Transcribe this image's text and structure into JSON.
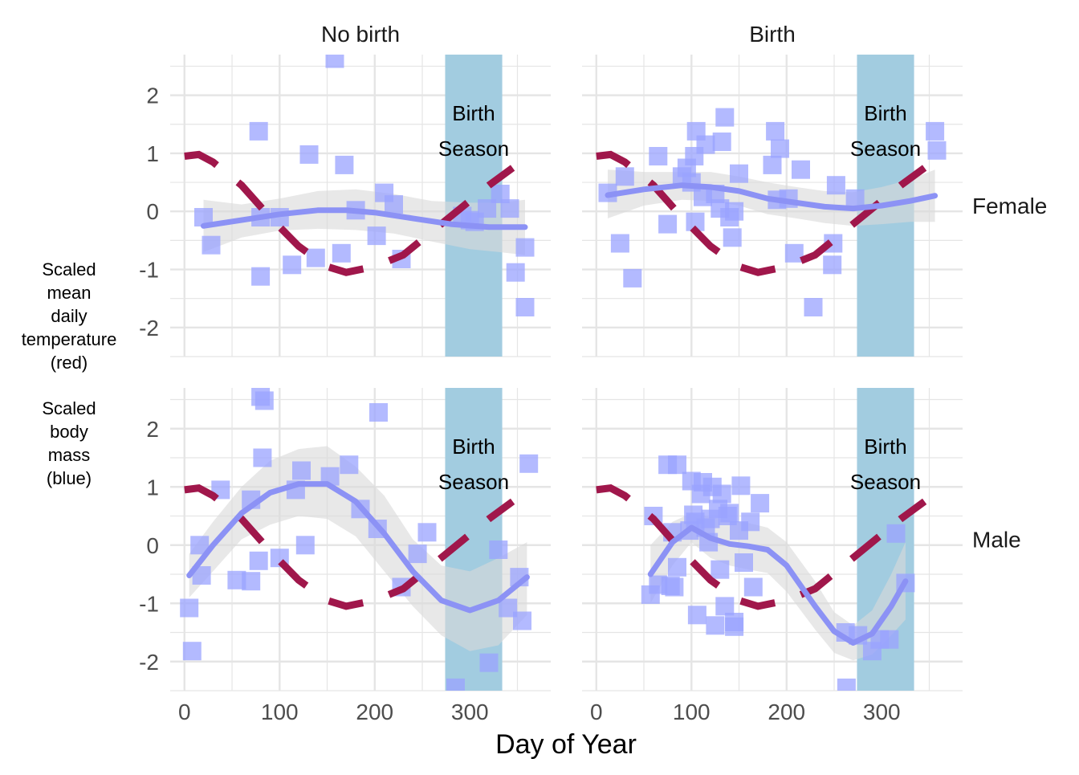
{
  "chart_data": {
    "type": "scatter",
    "xlabel": "Day of Year",
    "ylabel_lines": [
      "Scaled",
      "mean",
      "daily",
      "temperature",
      "(red)",
      "Scaled",
      "body",
      "mass",
      "(blue)"
    ],
    "xlim": [
      -15,
      385
    ],
    "ylim": [
      -2.5,
      2.7
    ],
    "x_ticks": [
      0,
      100,
      200,
      300
    ],
    "x_tick_labels": [
      "0",
      "100",
      "200",
      "300"
    ],
    "y_ticks": [
      2,
      1,
      0,
      -1,
      -2
    ],
    "y_tick_labels": [
      "2",
      "1",
      "0",
      "-1",
      "-2"
    ],
    "grid": true,
    "column_labels": [
      "No birth",
      "Birth"
    ],
    "row_labels": [
      "Female",
      "Male"
    ],
    "birth_season": {
      "start": 274,
      "end": 334,
      "label_line1": "Birth",
      "label_line2": "Season"
    },
    "colors": {
      "points": "#9aa3ff",
      "smooth": "#8c92f5",
      "ribbon": "#d9d9d9",
      "temperature": "#a0174b",
      "season_band": "#a2cce0",
      "grid": "#e5e5e5"
    },
    "temperature_curve": [
      [
        0,
        0.95
      ],
      [
        15,
        0.98
      ],
      [
        30,
        0.85
      ],
      [
        60,
        0.45
      ],
      [
        90,
        -0.1
      ],
      [
        120,
        -0.6
      ],
      [
        150,
        -0.95
      ],
      [
        170,
        -1.05
      ],
      [
        200,
        -0.95
      ],
      [
        230,
        -0.75
      ],
      [
        260,
        -0.35
      ],
      [
        290,
        0.05
      ],
      [
        320,
        0.45
      ],
      [
        345,
        0.75
      ]
    ],
    "panels": [
      {
        "row": "Female",
        "column": "No birth",
        "points": [
          [
            20,
            -0.1
          ],
          [
            28,
            -0.58
          ],
          [
            78,
            1.38
          ],
          [
            80,
            -0.1
          ],
          [
            80,
            -1.12
          ],
          [
            100,
            -0.1
          ],
          [
            113,
            -0.92
          ],
          [
            131,
            0.98
          ],
          [
            138,
            -0.8
          ],
          [
            158,
            2.63
          ],
          [
            165,
            -0.72
          ],
          [
            168,
            0.8
          ],
          [
            180,
            0.02
          ],
          [
            202,
            -0.42
          ],
          [
            210,
            0.32
          ],
          [
            220,
            0.12
          ],
          [
            228,
            -0.82
          ],
          [
            292,
            -0.08
          ],
          [
            300,
            -0.15
          ],
          [
            305,
            -0.18
          ],
          [
            318,
            0.05
          ],
          [
            332,
            0.3
          ],
          [
            342,
            0.05
          ],
          [
            348,
            -1.05
          ],
          [
            358,
            -0.62
          ],
          [
            358,
            -1.65
          ]
        ],
        "smooth": [
          [
            20,
            -0.25
          ],
          [
            60,
            -0.15
          ],
          [
            100,
            -0.05
          ],
          [
            140,
            0.02
          ],
          [
            170,
            0.02
          ],
          [
            200,
            -0.02
          ],
          [
            240,
            -0.12
          ],
          [
            280,
            -0.22
          ],
          [
            320,
            -0.27
          ],
          [
            358,
            -0.27
          ]
        ],
        "ribbon_upper": [
          [
            20,
            0.2
          ],
          [
            60,
            0.12
          ],
          [
            100,
            0.22
          ],
          [
            140,
            0.35
          ],
          [
            180,
            0.38
          ],
          [
            220,
            0.3
          ],
          [
            260,
            0.18
          ],
          [
            300,
            0.15
          ],
          [
            330,
            0.15
          ],
          [
            358,
            0.2
          ]
        ],
        "ribbon_lower": [
          [
            20,
            -0.7
          ],
          [
            60,
            -0.45
          ],
          [
            100,
            -0.33
          ],
          [
            140,
            -0.3
          ],
          [
            180,
            -0.32
          ],
          [
            220,
            -0.38
          ],
          [
            260,
            -0.52
          ],
          [
            300,
            -0.65
          ],
          [
            330,
            -0.7
          ],
          [
            358,
            -0.75
          ]
        ]
      },
      {
        "row": "Female",
        "column": "Birth",
        "points": [
          [
            12,
            0.32
          ],
          [
            25,
            -0.55
          ],
          [
            30,
            0.6
          ],
          [
            38,
            -1.15
          ],
          [
            65,
            0.95
          ],
          [
            75,
            -0.22
          ],
          [
            90,
            0.6
          ],
          [
            95,
            0.75
          ],
          [
            100,
            0.5
          ],
          [
            103,
            0.95
          ],
          [
            104,
            -0.18
          ],
          [
            105,
            1.38
          ],
          [
            112,
            0.25
          ],
          [
            115,
            1.15
          ],
          [
            125,
            0.3
          ],
          [
            130,
            0.05
          ],
          [
            132,
            1.2
          ],
          [
            135,
            1.62
          ],
          [
            140,
            -0.1
          ],
          [
            143,
            -0.45
          ],
          [
            145,
            0.0
          ],
          [
            150,
            0.65
          ],
          [
            185,
            0.8
          ],
          [
            188,
            1.38
          ],
          [
            190,
            0.2
          ],
          [
            193,
            1.08
          ],
          [
            202,
            0.22
          ],
          [
            208,
            -0.72
          ],
          [
            215,
            0.72
          ],
          [
            228,
            -1.65
          ],
          [
            248,
            -0.92
          ],
          [
            249,
            -0.55
          ],
          [
            252,
            0.45
          ],
          [
            272,
            0.22
          ],
          [
            356,
            1.38
          ],
          [
            358,
            1.05
          ]
        ],
        "smooth": [
          [
            12,
            0.28
          ],
          [
            50,
            0.38
          ],
          [
            90,
            0.45
          ],
          [
            120,
            0.42
          ],
          [
            150,
            0.35
          ],
          [
            180,
            0.22
          ],
          [
            210,
            0.15
          ],
          [
            240,
            0.08
          ],
          [
            270,
            0.05
          ],
          [
            300,
            0.1
          ],
          [
            330,
            0.18
          ],
          [
            356,
            0.27
          ]
        ],
        "ribbon_upper": [
          [
            12,
            0.72
          ],
          [
            50,
            0.68
          ],
          [
            90,
            0.68
          ],
          [
            120,
            0.68
          ],
          [
            150,
            0.6
          ],
          [
            180,
            0.5
          ],
          [
            210,
            0.42
          ],
          [
            240,
            0.35
          ],
          [
            270,
            0.33
          ],
          [
            300,
            0.42
          ],
          [
            330,
            0.55
          ],
          [
            356,
            0.72
          ]
        ],
        "ribbon_lower": [
          [
            12,
            -0.12
          ],
          [
            50,
            0.1
          ],
          [
            90,
            0.2
          ],
          [
            120,
            0.18
          ],
          [
            150,
            0.1
          ],
          [
            180,
            -0.05
          ],
          [
            210,
            -0.12
          ],
          [
            240,
            -0.2
          ],
          [
            270,
            -0.25
          ],
          [
            300,
            -0.22
          ],
          [
            330,
            -0.18
          ],
          [
            356,
            -0.18
          ]
        ]
      },
      {
        "row": "Male",
        "column": "No birth",
        "points": [
          [
            5,
            -1.08
          ],
          [
            8,
            -1.82
          ],
          [
            16,
            0.0
          ],
          [
            18,
            -0.52
          ],
          [
            38,
            0.95
          ],
          [
            55,
            -0.6
          ],
          [
            70,
            0.78
          ],
          [
            70,
            -0.62
          ],
          [
            78,
            -0.27
          ],
          [
            80,
            2.55
          ],
          [
            82,
            1.5
          ],
          [
            84,
            2.48
          ],
          [
            100,
            -0.22
          ],
          [
            117,
            0.95
          ],
          [
            123,
            1.28
          ],
          [
            127,
            0.0
          ],
          [
            153,
            1.18
          ],
          [
            173,
            1.38
          ],
          [
            185,
            0.62
          ],
          [
            203,
            0.28
          ],
          [
            204,
            2.28
          ],
          [
            228,
            -0.72
          ],
          [
            245,
            -0.15
          ],
          [
            255,
            0.22
          ],
          [
            285,
            -2.45
          ],
          [
            320,
            -2.02
          ],
          [
            330,
            -0.08
          ],
          [
            340,
            -1.08
          ],
          [
            352,
            -0.55
          ],
          [
            355,
            -1.3
          ],
          [
            362,
            1.4
          ]
        ],
        "smooth": [
          [
            5,
            -0.52
          ],
          [
            30,
            0.0
          ],
          [
            60,
            0.55
          ],
          [
            90,
            0.9
          ],
          [
            120,
            1.05
          ],
          [
            150,
            1.05
          ],
          [
            180,
            0.75
          ],
          [
            210,
            0.2
          ],
          [
            240,
            -0.45
          ],
          [
            270,
            -0.95
          ],
          [
            300,
            -1.12
          ],
          [
            330,
            -0.95
          ],
          [
            360,
            -0.55
          ]
        ],
        "ribbon_upper": [
          [
            5,
            -0.15
          ],
          [
            30,
            0.4
          ],
          [
            60,
            1.0
          ],
          [
            90,
            1.45
          ],
          [
            120,
            1.65
          ],
          [
            150,
            1.7
          ],
          [
            180,
            1.35
          ],
          [
            210,
            0.85
          ],
          [
            240,
            0.1
          ],
          [
            270,
            -0.35
          ],
          [
            300,
            -0.45
          ],
          [
            330,
            -0.22
          ],
          [
            360,
            0.05
          ]
        ],
        "ribbon_lower": [
          [
            5,
            -0.9
          ],
          [
            30,
            -0.45
          ],
          [
            60,
            0.1
          ],
          [
            90,
            0.35
          ],
          [
            120,
            0.5
          ],
          [
            150,
            0.45
          ],
          [
            180,
            0.15
          ],
          [
            210,
            -0.45
          ],
          [
            240,
            -1.05
          ],
          [
            270,
            -1.55
          ],
          [
            300,
            -1.82
          ],
          [
            330,
            -1.72
          ],
          [
            360,
            -1.2
          ]
        ]
      },
      {
        "row": "Male",
        "column": "Birth",
        "points": [
          [
            57,
            -0.85
          ],
          [
            60,
            0.5
          ],
          [
            65,
            -0.68
          ],
          [
            75,
            1.38
          ],
          [
            78,
            -0.7
          ],
          [
            80,
            0.22
          ],
          [
            82,
            -0.72
          ],
          [
            85,
            -0.38
          ],
          [
            85,
            1.38
          ],
          [
            98,
            0.25
          ],
          [
            100,
            1.1
          ],
          [
            102,
            0.52
          ],
          [
            104,
            0.4
          ],
          [
            106,
            -1.2
          ],
          [
            110,
            0.88
          ],
          [
            112,
            1.08
          ],
          [
            115,
            0.3
          ],
          [
            118,
            0.05
          ],
          [
            120,
            0.45
          ],
          [
            122,
            1.0
          ],
          [
            125,
            -1.38
          ],
          [
            128,
            0.62
          ],
          [
            130,
            -0.42
          ],
          [
            132,
            0.88
          ],
          [
            135,
            -1.05
          ],
          [
            138,
            0.5
          ],
          [
            140,
            0.55
          ],
          [
            145,
            -1.32
          ],
          [
            145,
            -1.4
          ],
          [
            150,
            0.25
          ],
          [
            152,
            1.02
          ],
          [
            155,
            -0.3
          ],
          [
            162,
            0.4
          ],
          [
            165,
            -0.72
          ],
          [
            172,
            0.72
          ],
          [
            262,
            -1.5
          ],
          [
            263,
            -2.45
          ],
          [
            275,
            -1.55
          ],
          [
            290,
            -1.82
          ],
          [
            298,
            -1.62
          ],
          [
            308,
            -1.62
          ],
          [
            315,
            0.2
          ],
          [
            325,
            -0.65
          ]
        ],
        "smooth": [
          [
            57,
            -0.5
          ],
          [
            80,
            0.05
          ],
          [
            100,
            0.3
          ],
          [
            120,
            0.12
          ],
          [
            140,
            0.02
          ],
          [
            160,
            -0.02
          ],
          [
            180,
            -0.08
          ],
          [
            200,
            -0.35
          ],
          [
            230,
            -1.05
          ],
          [
            250,
            -1.48
          ],
          [
            270,
            -1.68
          ],
          [
            290,
            -1.52
          ],
          [
            310,
            -1.05
          ],
          [
            325,
            -0.62
          ]
        ],
        "ribbon_upper": [
          [
            57,
            0.0
          ],
          [
            80,
            0.4
          ],
          [
            100,
            0.55
          ],
          [
            120,
            0.48
          ],
          [
            140,
            0.42
          ],
          [
            160,
            0.38
          ],
          [
            180,
            0.3
          ],
          [
            200,
            0.05
          ],
          [
            230,
            -0.62
          ],
          [
            250,
            -1.15
          ],
          [
            270,
            -1.38
          ],
          [
            290,
            -1.12
          ],
          [
            310,
            -0.5
          ],
          [
            325,
            0.05
          ]
        ],
        "ribbon_lower": [
          [
            57,
            -1.0
          ],
          [
            80,
            -0.35
          ],
          [
            100,
            0.05
          ],
          [
            120,
            -0.22
          ],
          [
            140,
            -0.35
          ],
          [
            160,
            -0.42
          ],
          [
            180,
            -0.48
          ],
          [
            200,
            -0.8
          ],
          [
            230,
            -1.45
          ],
          [
            250,
            -1.85
          ],
          [
            270,
            -1.98
          ],
          [
            290,
            -1.88
          ],
          [
            310,
            -1.55
          ],
          [
            325,
            -1.28
          ]
        ]
      }
    ]
  }
}
